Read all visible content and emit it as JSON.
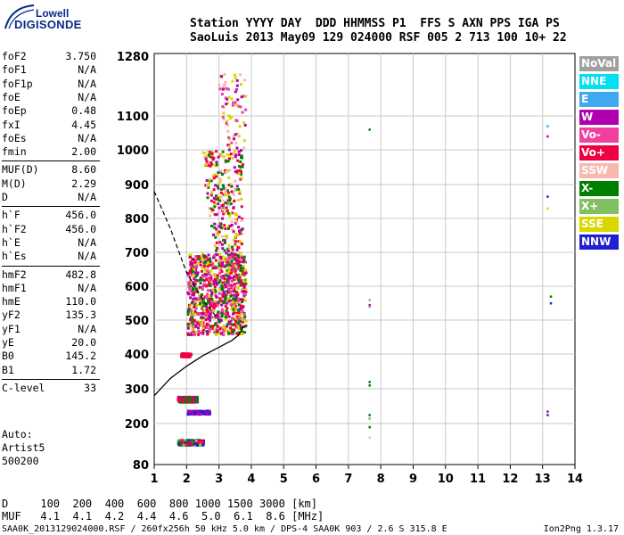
{
  "logo": {
    "line1": "Lowell",
    "line2": "DIGISONDE"
  },
  "header": {
    "line1": "Station YYYY DAY  DDD HHMMSS P1  FFS S AXN PPS IGA PS",
    "line2": "SaoLuis 2013 May09 129 024000 RSF 005 2 713 100 10+ 22"
  },
  "params": [
    {
      "k": "foF2",
      "v": "3.750"
    },
    {
      "k": "foF1",
      "v": "N/A"
    },
    {
      "k": "foF1p",
      "v": "N/A"
    },
    {
      "k": "foE",
      "v": "N/A"
    },
    {
      "k": "foEp",
      "v": "0.48"
    },
    {
      "k": "fxI",
      "v": "4.45"
    },
    {
      "k": "foEs",
      "v": "N/A"
    },
    {
      "k": "fmin",
      "v": "2.00"
    },
    {
      "k": "MUF(D)",
      "v": "8.60"
    },
    {
      "k": "M(D)",
      "v": "2.29"
    },
    {
      "k": "D",
      "v": "N/A"
    },
    {
      "k": "h`F",
      "v": "456.0"
    },
    {
      "k": "h`F2",
      "v": "456.0"
    },
    {
      "k": "h`E",
      "v": "N/A"
    },
    {
      "k": "h`Es",
      "v": "N/A"
    },
    {
      "k": "hmF2",
      "v": "482.8"
    },
    {
      "k": "hmF1",
      "v": "N/A"
    },
    {
      "k": "hmE",
      "v": "110.0"
    },
    {
      "k": "yF2",
      "v": "135.3"
    },
    {
      "k": "yF1",
      "v": "N/A"
    },
    {
      "k": "yE",
      "v": "20.0"
    },
    {
      "k": "B0",
      "v": "145.2"
    },
    {
      "k": "B1",
      "v": "1.72"
    },
    {
      "k": "C-level",
      "v": "33"
    }
  ],
  "auto": [
    "Auto:",
    "Artist5",
    "500200"
  ],
  "legend": [
    {
      "label": "NoVal",
      "color": "#a0a0a0"
    },
    {
      "label": "NNE",
      "color": "#00e0f0"
    },
    {
      "label": "E",
      "color": "#40a8f0"
    },
    {
      "label": "W",
      "color": "#b000b0"
    },
    {
      "label": "Vo-",
      "color": "#f040a0"
    },
    {
      "label": "Vo+",
      "color": "#f00040"
    },
    {
      "label": "SSW",
      "color": "#f8b8b0"
    },
    {
      "label": "X-",
      "color": "#008000"
    },
    {
      "label": "X+",
      "color": "#80c060"
    },
    {
      "label": "SSE",
      "color": "#d8d800"
    },
    {
      "label": "NNW",
      "color": "#2020d0"
    }
  ],
  "footer": {
    "line1": "D     100  200  400  600  800 1000 1500 3000 [km]",
    "line2": "MUF   4.1  4.1  4.2  4.4  4.6  5.0  6.1  8.6 [MHz]",
    "line3": "SAA0K_2013129024000.RSF / 260fx256h 50 kHz 5.0 km / DPS-4 SAA0K 903 / 2.6 S 315.8 E",
    "version": "Ion2Png 1.3.17"
  },
  "chart_data": {
    "type": "scatter",
    "title": "",
    "xlabel": "",
    "ylabel": "",
    "xlim": [
      1,
      14
    ],
    "ylim": [
      80,
      1280
    ],
    "x_ticks": [
      1,
      2,
      3,
      4,
      5,
      6,
      7,
      8,
      9,
      10,
      11,
      12,
      13,
      14
    ],
    "y_ticks": [
      80,
      200,
      300,
      400,
      500,
      600,
      700,
      800,
      900,
      1000,
      1100,
      1280
    ],
    "grid": true,
    "profile_curve": {
      "x": [
        1.0,
        1.5,
        2.0,
        2.5,
        3.0,
        3.4,
        3.6,
        3.7,
        3.75
      ],
      "y": [
        280,
        330,
        365,
        395,
        420,
        440,
        455,
        470,
        483
      ]
    },
    "dashed_trace": {
      "x": [
        1.0,
        1.5,
        2.0,
        2.5,
        3.0
      ],
      "y": [
        880,
        770,
        640,
        560,
        500
      ]
    },
    "echo_clusters": [
      {
        "x0": 2.0,
        "x1": 3.8,
        "y0": 460,
        "y1": 700,
        "density": "high",
        "colors": [
          "#f00040",
          "#b000b0",
          "#008000",
          "#d8d800",
          "#f040a0"
        ]
      },
      {
        "x0": 2.4,
        "x1": 3.7,
        "y0": 700,
        "y1": 1000,
        "density": "medium",
        "colors": [
          "#f8b8b0",
          "#b000b0",
          "#d8d800",
          "#008000",
          "#f00040"
        ]
      },
      {
        "x0": 2.9,
        "x1": 3.8,
        "y0": 1000,
        "y1": 1230,
        "density": "low",
        "colors": [
          "#f8b8b0",
          "#b000b0",
          "#f040a0",
          "#d8d800"
        ]
      },
      {
        "x0": 1.7,
        "x1": 2.5,
        "y0": 140,
        "y1": 155,
        "density": "medium",
        "colors": [
          "#f00040",
          "#80c060",
          "#2020d0",
          "#008000"
        ]
      },
      {
        "x0": 1.7,
        "x1": 2.3,
        "y0": 265,
        "y1": 280,
        "density": "medium",
        "colors": [
          "#f00040",
          "#b000b0",
          "#008000"
        ]
      },
      {
        "x0": 2.0,
        "x1": 2.7,
        "y0": 230,
        "y1": 240,
        "density": "low",
        "colors": [
          "#b000b0",
          "#2020d0"
        ]
      },
      {
        "x0": 1.8,
        "x1": 2.1,
        "y0": 395,
        "y1": 405,
        "density": "low",
        "colors": [
          "#f00040"
        ]
      }
    ],
    "isolated_points": [
      {
        "x": 7.65,
        "y": 1060,
        "color": "#008000"
      },
      {
        "x": 7.65,
        "y": 560,
        "color": "#80c060"
      },
      {
        "x": 7.65,
        "y": 545,
        "color": "#f00040"
      },
      {
        "x": 7.65,
        "y": 540,
        "color": "#40a8f0"
      },
      {
        "x": 7.65,
        "y": 320,
        "color": "#008000"
      },
      {
        "x": 7.65,
        "y": 310,
        "color": "#008000"
      },
      {
        "x": 7.65,
        "y": 225,
        "color": "#008000"
      },
      {
        "x": 7.65,
        "y": 215,
        "color": "#80c060"
      },
      {
        "x": 7.65,
        "y": 190,
        "color": "#008000"
      },
      {
        "x": 7.65,
        "y": 160,
        "color": "#f8b8b0"
      },
      {
        "x": 13.15,
        "y": 1070,
        "color": "#40a8f0"
      },
      {
        "x": 13.15,
        "y": 1040,
        "color": "#b000b0"
      },
      {
        "x": 13.15,
        "y": 865,
        "color": "#2020d0"
      },
      {
        "x": 13.15,
        "y": 830,
        "color": "#d8d800"
      },
      {
        "x": 13.25,
        "y": 570,
        "color": "#008000"
      },
      {
        "x": 13.25,
        "y": 550,
        "color": "#2020d0"
      },
      {
        "x": 13.15,
        "y": 235,
        "color": "#b000b0"
      },
      {
        "x": 13.15,
        "y": 225,
        "color": "#2020d0"
      }
    ]
  }
}
